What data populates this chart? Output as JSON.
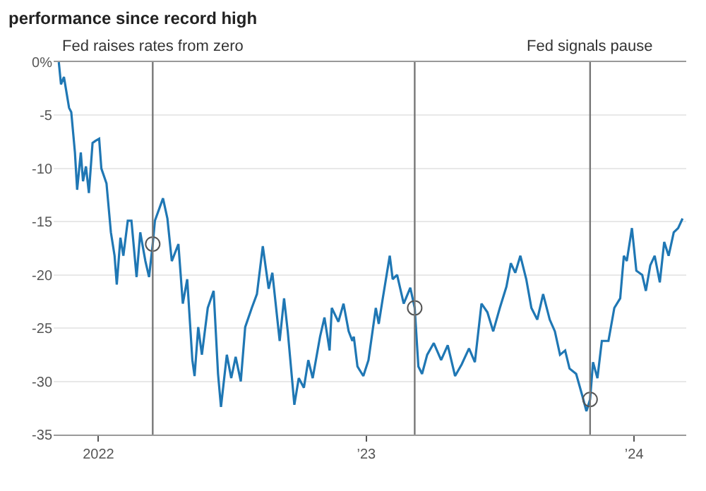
{
  "chart_data": {
    "type": "line",
    "title": "performance since record high",
    "x": [
      "2021-11-08",
      "2021-11-11",
      "2021-11-15",
      "2021-11-22",
      "2021-11-25",
      "2021-11-30",
      "2021-12-03",
      "2021-12-08",
      "2021-12-11",
      "2021-12-15",
      "2021-12-19",
      "2021-12-24",
      "2021-12-28",
      "2022-01-02",
      "2022-01-05",
      "2022-01-12",
      "2022-01-18",
      "2022-01-23",
      "2022-01-26",
      "2022-01-31",
      "2022-02-04",
      "2022-02-10",
      "2022-02-15",
      "2022-02-22",
      "2022-02-27",
      "2022-03-06",
      "2022-03-11",
      "2022-03-16",
      "2022-03-19",
      "2022-03-30",
      "2022-04-05",
      "2022-04-11",
      "2022-04-20",
      "2022-04-26",
      "2022-05-02",
      "2022-05-09",
      "2022-05-12",
      "2022-05-17",
      "2022-05-22",
      "2022-05-30",
      "2022-06-07",
      "2022-06-13",
      "2022-06-17",
      "2022-06-25",
      "2022-07-01",
      "2022-07-07",
      "2022-07-14",
      "2022-07-20",
      "2022-07-29",
      "2022-08-05",
      "2022-08-13",
      "2022-08-21",
      "2022-08-26",
      "2022-09-05",
      "2022-09-11",
      "2022-09-16",
      "2022-09-25",
      "2022-10-01",
      "2022-10-08",
      "2022-10-14",
      "2022-10-20",
      "2022-10-30",
      "2022-11-05",
      "2022-11-12",
      "2022-11-15",
      "2022-11-24",
      "2022-12-01",
      "2022-12-08",
      "2022-12-13",
      "2022-12-15",
      "2022-12-20",
      "2022-12-28",
      "2023-01-04",
      "2023-01-14",
      "2023-01-18",
      "2023-01-23",
      "2023-02-02",
      "2023-02-06",
      "2023-02-12",
      "2023-02-21",
      "2023-03-02",
      "2023-03-08",
      "2023-03-13",
      "2023-03-18",
      "2023-03-25",
      "2023-04-03",
      "2023-04-13",
      "2023-04-22",
      "2023-05-02",
      "2023-05-11",
      "2023-05-21",
      "2023-05-29",
      "2023-06-07",
      "2023-06-15",
      "2023-06-23",
      "2023-07-02",
      "2023-07-11",
      "2023-07-17",
      "2023-07-23",
      "2023-07-30",
      "2023-08-07",
      "2023-08-14",
      "2023-08-22",
      "2023-08-30",
      "2023-09-08",
      "2023-09-15",
      "2023-09-22",
      "2023-09-29",
      "2023-10-05",
      "2023-10-14",
      "2023-10-23",
      "2023-10-28",
      "2023-11-02",
      "2023-11-06",
      "2023-11-12",
      "2023-11-18",
      "2023-11-27",
      "2023-12-05",
      "2023-12-13",
      "2023-12-18",
      "2023-12-22",
      "2023-12-29",
      "2024-01-04",
      "2024-01-12",
      "2024-01-17",
      "2024-01-23",
      "2024-01-29",
      "2024-02-05",
      "2024-02-11",
      "2024-02-17",
      "2024-02-24",
      "2024-03-01",
      "2024-03-07"
    ],
    "series": [
      {
        "color": "#1f77b4",
        "values": [
          0,
          -2.1,
          -1.4,
          -4.3,
          -4.7,
          -8.5,
          -12.0,
          -8.5,
          -11.2,
          -9.8,
          -12.3,
          -7.6,
          -7.4,
          -7.2,
          -10.0,
          -11.4,
          -16.0,
          -18.2,
          -20.9,
          -16.5,
          -18.2,
          -14.9,
          -14.9,
          -20.2,
          -16.0,
          -18.7,
          -20.2,
          -17.1,
          -14.9,
          -12.8,
          -14.7,
          -18.7,
          -17.1,
          -22.7,
          -20.4,
          -28.0,
          -29.5,
          -24.9,
          -27.5,
          -23.1,
          -21.5,
          -29.3,
          -32.4,
          -27.5,
          -29.7,
          -27.7,
          -30.0,
          -24.9,
          -23.1,
          -21.8,
          -17.3,
          -21.3,
          -19.8,
          -26.2,
          -22.2,
          -25.3,
          -32.2,
          -29.7,
          -30.6,
          -28.0,
          -29.7,
          -25.8,
          -24.0,
          -27.1,
          -23.1,
          -24.4,
          -22.7,
          -25.3,
          -26.2,
          -25.8,
          -28.6,
          -29.5,
          -28.0,
          -23.1,
          -24.6,
          -22.4,
          -18.2,
          -20.4,
          -20.0,
          -22.7,
          -21.2,
          -23.1,
          -28.6,
          -29.3,
          -27.5,
          -26.4,
          -28.0,
          -26.6,
          -29.5,
          -28.4,
          -26.9,
          -28.2,
          -22.7,
          -23.5,
          -25.3,
          -23.1,
          -21.1,
          -18.9,
          -19.8,
          -18.2,
          -20.4,
          -23.1,
          -24.2,
          -21.8,
          -24.2,
          -25.3,
          -27.5,
          -27.1,
          -28.8,
          -29.3,
          -31.5,
          -32.8,
          -31.7,
          -28.2,
          -29.7,
          -26.2,
          -26.2,
          -23.1,
          -22.2,
          -18.2,
          -18.7,
          -15.6,
          -19.6,
          -20.0,
          -21.5,
          -19.1,
          -18.2,
          -20.7,
          -16.9,
          -18.2,
          -16.0,
          -15.6,
          -14.7
        ]
      },
      {
        "type": "scatter",
        "color": "#555555",
        "marker": "circle",
        "x": [
          "2022-03-16",
          "2023-03-08",
          "2023-11-02"
        ],
        "values": [
          -17.1,
          -23.1,
          -31.7
        ]
      }
    ],
    "xlim": [
      "2021-11-01",
      "2024-03-12"
    ],
    "xticks": [
      {
        "value": "2022-01-01",
        "label": "2022"
      },
      {
        "value": "2023-01-01",
        "label": "’23"
      },
      {
        "value": "2024-01-01",
        "label": "’24"
      }
    ],
    "ylim": [
      -35,
      0
    ],
    "yticks": [
      {
        "value": 0,
        "label": "0%"
      },
      -5,
      -10,
      -15,
      -20,
      -25,
      -30,
      -35
    ],
    "grid": "y",
    "ref_lines": [
      {
        "axis": "x",
        "value": "2022-03-16",
        "label": "Fed raises rates from zero",
        "color": "#777777"
      },
      {
        "axis": "x",
        "value": "2023-03-08",
        "label": null,
        "color": "#777777"
      },
      {
        "axis": "x",
        "value": "2023-11-02",
        "label": "Fed signals pause",
        "color": "#777777"
      }
    ]
  }
}
